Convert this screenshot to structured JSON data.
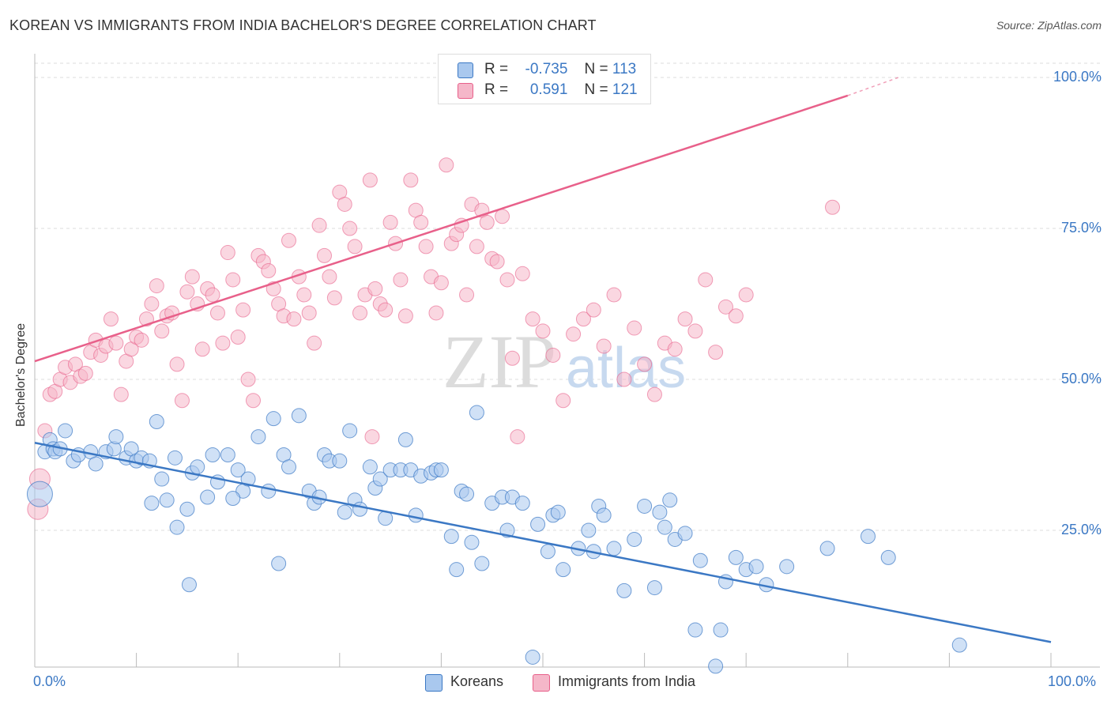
{
  "title": "KOREAN VS IMMIGRANTS FROM INDIA BACHELOR'S DEGREE CORRELATION CHART",
  "source": "Source: ZipAtlas.com",
  "watermark": {
    "zip": "ZIP",
    "atlas": "atlas"
  },
  "colors": {
    "blue": "#3b78c4",
    "blue_fill": "#a9c8ee",
    "pink": "#e8608a",
    "pink_fill": "#f5b7c9",
    "grid": "#dddddd"
  },
  "stats": {
    "blue": {
      "r_label": "R =",
      "r_value": "-0.735",
      "n_label": "N =",
      "n_value": "113"
    },
    "pink": {
      "r_label": "R =",
      "r_value": "0.591",
      "n_label": "N =",
      "n_value": "121"
    }
  },
  "chart_data": {
    "type": "scatter",
    "title": "KOREAN VS IMMIGRANTS FROM INDIA BACHELOR'S DEGREE CORRELATION CHART",
    "xlabel": "",
    "ylabel": "Bachelor's Degree",
    "xlim": [
      0,
      100
    ],
    "ylim": [
      0,
      100
    ],
    "x_tick_labels": [
      "0.0%",
      "100.0%"
    ],
    "y_tick_labels": [
      "25.0%",
      "50.0%",
      "75.0%",
      "100.0%"
    ],
    "y_ticks": [
      25,
      50,
      75,
      100
    ],
    "grid": true,
    "legend_position": "bottom-center",
    "series": [
      {
        "name": "Koreans",
        "color": "#3b78c4",
        "r": -0.735,
        "n": 113,
        "trend": {
          "x": [
            0,
            100
          ],
          "y": [
            39.5,
            6.5
          ]
        },
        "points": [
          [
            0.5,
            31
          ],
          [
            1,
            38
          ],
          [
            1.5,
            40
          ],
          [
            1.8,
            38.5
          ],
          [
            2,
            38
          ],
          [
            2.5,
            38.5
          ],
          [
            3,
            41.5
          ],
          [
            3.8,
            36.5
          ],
          [
            4.3,
            37.5
          ],
          [
            5.5,
            38
          ],
          [
            6,
            36
          ],
          [
            7,
            38
          ],
          [
            7.8,
            38.5
          ],
          [
            8,
            40.5
          ],
          [
            9,
            37
          ],
          [
            9.5,
            38.5
          ],
          [
            10,
            36.5
          ],
          [
            10.5,
            37
          ],
          [
            11.5,
            29.5
          ],
          [
            12,
            43
          ],
          [
            12.5,
            33.5
          ],
          [
            13,
            30
          ],
          [
            13.8,
            37
          ],
          [
            14,
            25.5
          ],
          [
            15,
            28.5
          ],
          [
            15.5,
            34.5
          ],
          [
            16,
            35.5
          ],
          [
            17,
            30.5
          ],
          [
            17.5,
            37.5
          ],
          [
            18,
            33
          ],
          [
            19,
            37.5
          ],
          [
            20,
            35
          ],
          [
            20.5,
            31.5
          ],
          [
            21,
            33.5
          ],
          [
            22,
            40.5
          ],
          [
            23,
            31.5
          ],
          [
            23.5,
            43.5
          ],
          [
            24,
            19.5
          ],
          [
            24.5,
            37.5
          ],
          [
            25,
            35.5
          ],
          [
            26,
            44
          ],
          [
            27,
            31.5
          ],
          [
            27.5,
            29.5
          ],
          [
            28,
            30.5
          ],
          [
            28.5,
            37.5
          ],
          [
            29,
            36.5
          ],
          [
            30,
            36.5
          ],
          [
            30.5,
            28
          ],
          [
            31,
            41.5
          ],
          [
            31.5,
            30
          ],
          [
            32,
            28.5
          ],
          [
            33,
            35.5
          ],
          [
            33.5,
            32
          ],
          [
            34,
            33.5
          ],
          [
            34.5,
            27
          ],
          [
            35,
            35
          ],
          [
            36,
            35
          ],
          [
            36.5,
            40
          ],
          [
            37,
            35
          ],
          [
            37.5,
            27.5
          ],
          [
            38,
            34
          ],
          [
            39,
            34.5
          ],
          [
            39.5,
            35
          ],
          [
            40,
            35
          ],
          [
            41,
            24
          ],
          [
            41.5,
            18.5
          ],
          [
            42,
            31.5
          ],
          [
            42.5,
            31
          ],
          [
            43,
            23
          ],
          [
            43.5,
            44.5
          ],
          [
            44,
            19.5
          ],
          [
            45,
            29.5
          ],
          [
            46,
            30.5
          ],
          [
            46.5,
            25
          ],
          [
            47,
            30.5
          ],
          [
            48,
            29.5
          ],
          [
            49,
            4
          ],
          [
            49.5,
            26
          ],
          [
            50.5,
            21.5
          ],
          [
            51,
            27.5
          ],
          [
            51.5,
            28
          ],
          [
            52,
            18.5
          ],
          [
            53.5,
            22
          ],
          [
            54.5,
            25
          ],
          [
            55,
            21.5
          ],
          [
            55.5,
            29
          ],
          [
            56,
            27.5
          ],
          [
            57,
            22
          ],
          [
            58,
            15
          ],
          [
            59,
            23.5
          ],
          [
            60,
            29
          ],
          [
            61,
            15.5
          ],
          [
            61.5,
            28
          ],
          [
            62,
            25.5
          ],
          [
            62.5,
            30
          ],
          [
            63,
            23.5
          ],
          [
            64,
            24.5
          ],
          [
            65,
            8.5
          ],
          [
            65.5,
            20
          ],
          [
            67,
            2.5
          ],
          [
            67.5,
            8.5
          ],
          [
            68,
            16.5
          ],
          [
            69,
            20.5
          ],
          [
            70,
            18.5
          ],
          [
            71,
            19
          ],
          [
            72,
            16
          ],
          [
            74,
            19
          ],
          [
            78,
            22
          ],
          [
            82,
            24
          ],
          [
            84,
            20.5
          ],
          [
            91,
            6
          ],
          [
            11.3,
            36.5
          ],
          [
            15.2,
            16
          ],
          [
            19.5,
            30.3
          ]
        ]
      },
      {
        "name": "Immigrants from India",
        "color": "#e8608a",
        "r": 0.591,
        "n": 121,
        "trend": {
          "x": [
            0,
            80
          ],
          "y": [
            53,
            97
          ]
        },
        "trend_ext": {
          "x": [
            80,
            85
          ],
          "y": [
            97,
            100
          ]
        },
        "points": [
          [
            0.3,
            28.5
          ],
          [
            0.5,
            33.5
          ],
          [
            1,
            41.5
          ],
          [
            1.5,
            47.5
          ],
          [
            2,
            48
          ],
          [
            2.5,
            50
          ],
          [
            3,
            52
          ],
          [
            3.5,
            49.5
          ],
          [
            4,
            52.5
          ],
          [
            4.5,
            50.5
          ],
          [
            5,
            51
          ],
          [
            5.5,
            54.5
          ],
          [
            6,
            56.5
          ],
          [
            6.5,
            54
          ],
          [
            7,
            55.5
          ],
          [
            7.5,
            60
          ],
          [
            8,
            56
          ],
          [
            8.5,
            47.5
          ],
          [
            9,
            53
          ],
          [
            9.5,
            55
          ],
          [
            10,
            57
          ],
          [
            10.5,
            56.5
          ],
          [
            11,
            60
          ],
          [
            11.5,
            62.5
          ],
          [
            12,
            65.5
          ],
          [
            12.5,
            58
          ],
          [
            13,
            60.5
          ],
          [
            13.5,
            61
          ],
          [
            14,
            52.5
          ],
          [
            14.5,
            46.5
          ],
          [
            15,
            64.5
          ],
          [
            15.5,
            67
          ],
          [
            16,
            62.5
          ],
          [
            16.5,
            55
          ],
          [
            17,
            65
          ],
          [
            17.5,
            64
          ],
          [
            18,
            61
          ],
          [
            18.5,
            56
          ],
          [
            19,
            71
          ],
          [
            19.5,
            66.5
          ],
          [
            20,
            57
          ],
          [
            20.5,
            61.5
          ],
          [
            21,
            50
          ],
          [
            21.5,
            46.5
          ],
          [
            22,
            70.5
          ],
          [
            22.5,
            69.5
          ],
          [
            23,
            68
          ],
          [
            23.5,
            65
          ],
          [
            24,
            62.5
          ],
          [
            24.5,
            60.5
          ],
          [
            25,
            73
          ],
          [
            25.5,
            60
          ],
          [
            26,
            67
          ],
          [
            26.5,
            64
          ],
          [
            27,
            61
          ],
          [
            27.5,
            56
          ],
          [
            28,
            75.5
          ],
          [
            28.5,
            70.5
          ],
          [
            29,
            67
          ],
          [
            29.5,
            63.5
          ],
          [
            30,
            81
          ],
          [
            30.5,
            79
          ],
          [
            31,
            75
          ],
          [
            31.5,
            72
          ],
          [
            32,
            61
          ],
          [
            32.5,
            64
          ],
          [
            33,
            83
          ],
          [
            33.5,
            65
          ],
          [
            34,
            62.5
          ],
          [
            34.5,
            61.5
          ],
          [
            35,
            76
          ],
          [
            35.5,
            72.5
          ],
          [
            36,
            66.5
          ],
          [
            36.5,
            60.5
          ],
          [
            37,
            83
          ],
          [
            37.5,
            78
          ],
          [
            38,
            76
          ],
          [
            38.5,
            72
          ],
          [
            39,
            67
          ],
          [
            39.5,
            61
          ],
          [
            40,
            66
          ],
          [
            40.5,
            85.5
          ],
          [
            41,
            72.5
          ],
          [
            41.5,
            74
          ],
          [
            42,
            75.5
          ],
          [
            42.5,
            64
          ],
          [
            43,
            79
          ],
          [
            43.5,
            72
          ],
          [
            44,
            78
          ],
          [
            44.5,
            76
          ],
          [
            45,
            70
          ],
          [
            45.5,
            69.5
          ],
          [
            46,
            77
          ],
          [
            46.5,
            66.5
          ],
          [
            47,
            53.5
          ],
          [
            47.5,
            40.5
          ],
          [
            48,
            67.5
          ],
          [
            49,
            60
          ],
          [
            50,
            58
          ],
          [
            51,
            54
          ],
          [
            52,
            46.5
          ],
          [
            53,
            57.5
          ],
          [
            54,
            60
          ],
          [
            55,
            61.5
          ],
          [
            56,
            55.5
          ],
          [
            57,
            64
          ],
          [
            58,
            50
          ],
          [
            59,
            58.5
          ],
          [
            60,
            52.5
          ],
          [
            61,
            47.5
          ],
          [
            62,
            56
          ],
          [
            63,
            55
          ],
          [
            64,
            60
          ],
          [
            65,
            58
          ],
          [
            66,
            66.5
          ],
          [
            67,
            54.5
          ],
          [
            68,
            62
          ],
          [
            69,
            60.5
          ],
          [
            70,
            64
          ],
          [
            78.5,
            78.5
          ],
          [
            33.2,
            40.5
          ]
        ]
      }
    ]
  },
  "legend": {
    "koreans": "Koreans",
    "india": "Immigrants from India"
  }
}
